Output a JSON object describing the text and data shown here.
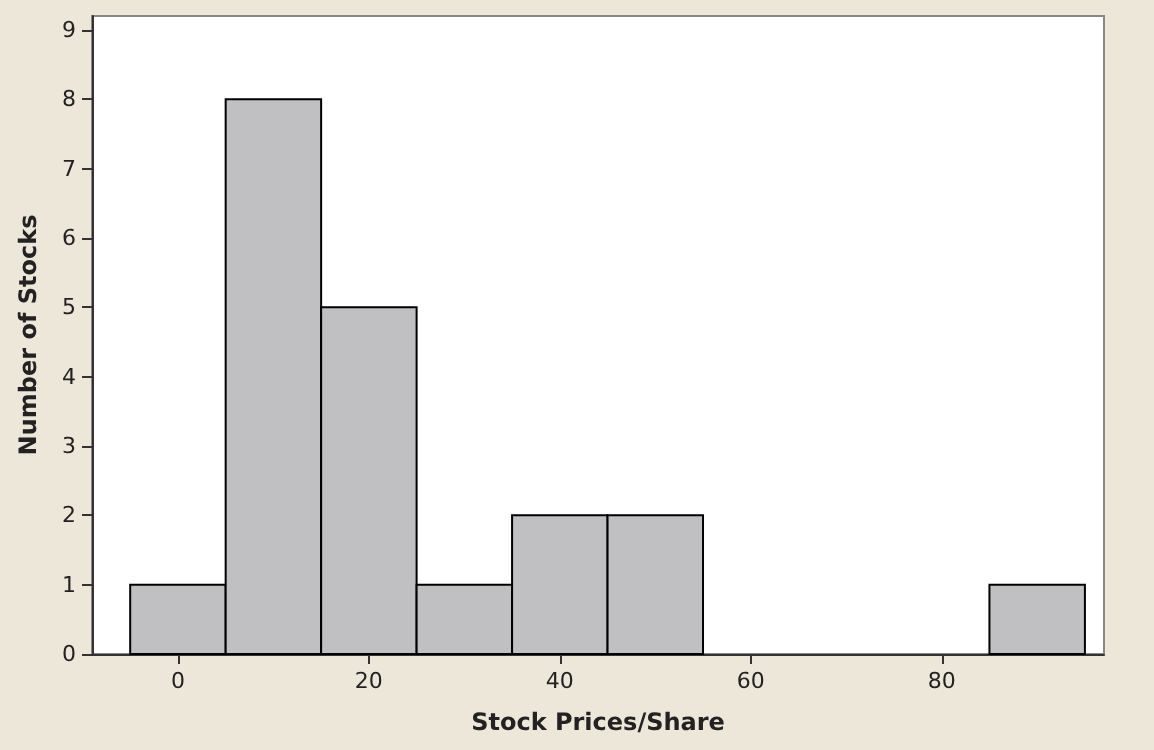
{
  "chart_data": {
    "type": "histogram",
    "xlabel": "Stock Prices/Share",
    "ylabel": "Number of Stocks",
    "bins": [
      -5,
      5,
      15,
      25,
      35,
      45,
      55,
      65,
      75,
      85,
      95
    ],
    "values": [
      1,
      8,
      5,
      1,
      2,
      2,
      0,
      0,
      0,
      1
    ],
    "color": "#c0c0c2",
    "xlim": [
      -9,
      97
    ],
    "xticks": [
      0,
      20,
      40,
      60,
      80
    ],
    "ylim": [
      0,
      9.2
    ],
    "yticks": [
      0,
      1,
      2,
      3,
      4,
      5,
      6,
      7,
      8,
      9
    ],
    "grid": false
  }
}
